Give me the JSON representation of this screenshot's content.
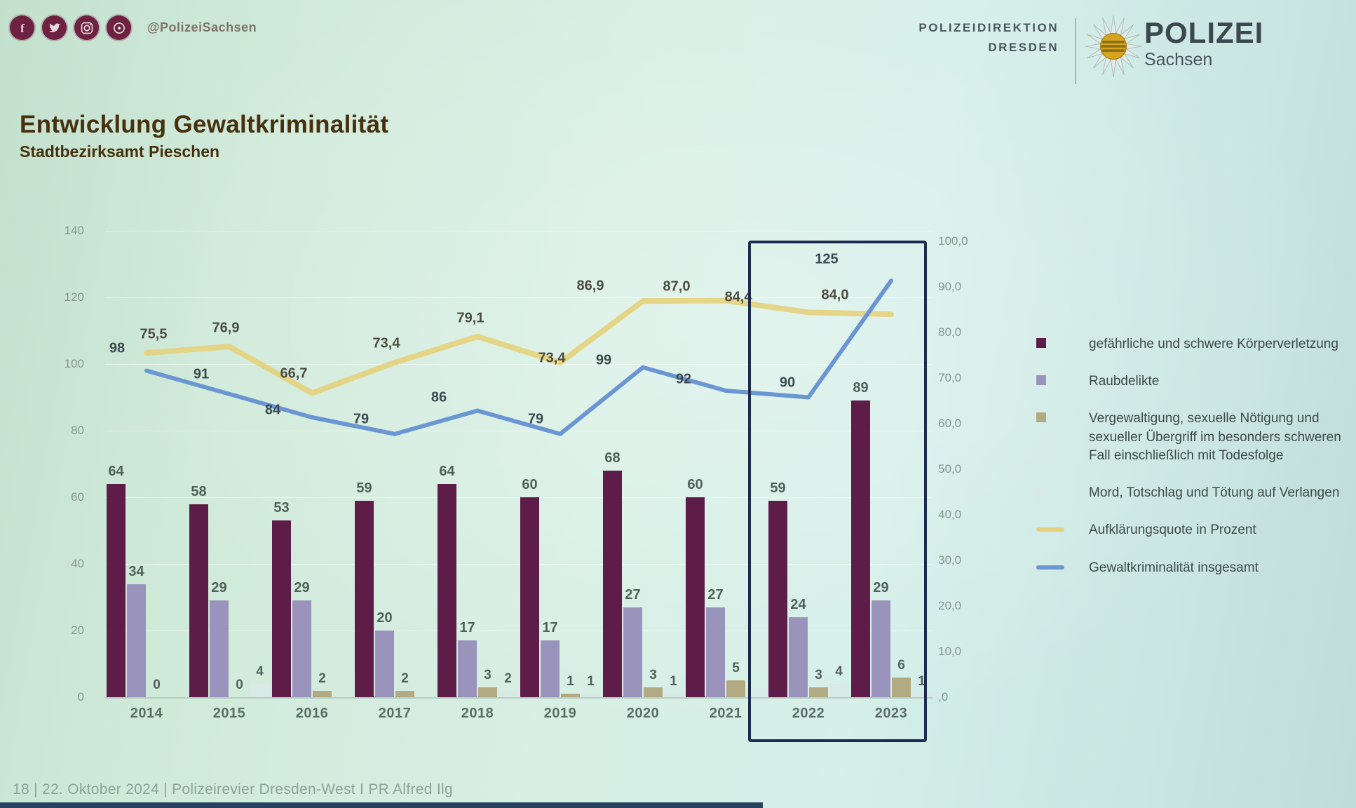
{
  "social": {
    "handle": "@PolizeiSachsen",
    "icons": [
      "facebook-icon",
      "twitter-icon",
      "instagram-icon",
      "messenger-icon"
    ]
  },
  "brand": {
    "org_line1": "POLIZEIDIREKTION",
    "org_line2": "DRESDEN",
    "logo_title": "POLIZEI",
    "logo_subtitle": "Sachsen"
  },
  "title": "Entwicklung Gewaltkriminalität",
  "subtitle": "Stadtbezirksamt Pieschen",
  "footer": {
    "text": "18 | 22. Oktober 2024 | Polizeirevier Dresden-West I PR Alfred Ilg"
  },
  "colors": {
    "bar1": "#5e1c48",
    "bar2": "#9a94bc",
    "bar3": "#b1aa82",
    "bar4": "#d9e9e6",
    "line_yellow": "#e5d17c",
    "line_blue": "#6b96d4",
    "highlight_box": "#1d2b50"
  },
  "chart_data": {
    "type": "combo",
    "title": "Entwicklung Gewaltkriminalität — Stadtbezirksamt Pieschen",
    "categories": [
      "2014",
      "2015",
      "2016",
      "2017",
      "2018",
      "2019",
      "2020",
      "2021",
      "2022",
      "2023"
    ],
    "series": [
      {
        "name": "gefährliche und schwere Körperverletzung",
        "type": "bar",
        "axis": "left",
        "color_key": "bar1",
        "values": [
          64,
          58,
          53,
          59,
          64,
          60,
          68,
          60,
          59,
          89
        ],
        "labels": [
          "64",
          "58",
          "53",
          "59",
          "64",
          "60",
          "68",
          "60",
          "59",
          "89"
        ],
        "show_zero_labels": true
      },
      {
        "name": "Raubdelikte",
        "type": "bar",
        "axis": "left",
        "color_key": "bar2",
        "values": [
          34,
          29,
          29,
          20,
          17,
          17,
          27,
          27,
          24,
          29
        ],
        "labels": [
          "34",
          "29",
          "29",
          "20",
          "17",
          "17",
          "27",
          "27",
          "24",
          "29"
        ],
        "show_zero_labels": true
      },
      {
        "name": "Vergewaltigung, sexuelle Nötigung und sexueller Übergriff im besonders schweren Fall einschließlich mit Todesfolge",
        "type": "bar",
        "axis": "left",
        "color_key": "bar3",
        "values": [
          0,
          0,
          2,
          2,
          3,
          1,
          3,
          5,
          3,
          6
        ],
        "labels": [
          "0",
          "0",
          "2",
          "2",
          "3",
          "1",
          "3",
          "5",
          "3",
          "6"
        ],
        "show_zero_labels": true
      },
      {
        "name": "Mord, Totschlag und Tötung auf Verlangen",
        "type": "bar",
        "axis": "left",
        "color_key": "bar4",
        "values": [
          0,
          4,
          0,
          0,
          2,
          1,
          1,
          0,
          4,
          1
        ],
        "labels": [
          "0",
          "4",
          "0",
          "0",
          "2",
          "1",
          "1",
          "0",
          "4",
          "1"
        ],
        "show_zero_labels": false
      },
      {
        "name": "Aufklärungsquote in Prozent",
        "type": "line",
        "axis": "right",
        "color_key": "line_yellow",
        "values": [
          75.5,
          76.9,
          66.7,
          73.4,
          79.1,
          73.4,
          86.9,
          87.0,
          84.4,
          84.0
        ],
        "labels": [
          "75,5",
          "76,9",
          "66,7",
          "73,4",
          "79,1",
          "73,4",
          "86,9",
          "87,0",
          "84,4",
          "84,0"
        ]
      },
      {
        "name": "Gewaltkriminalität insgesamt",
        "type": "line",
        "axis": "left",
        "color_key": "line_blue",
        "values": [
          98,
          91,
          84,
          79,
          86,
          79,
          99,
          92,
          90,
          125
        ],
        "labels": [
          "98",
          "91",
          "84",
          "79",
          "86",
          "79",
          "99",
          "92",
          "90",
          "125"
        ]
      }
    ],
    "left_axis": {
      "ticks": [
        "0",
        "20",
        "40",
        "60",
        "80",
        "100",
        "120",
        "140"
      ],
      "min": 0,
      "max": 140,
      "step": 20
    },
    "right_axis": {
      "ticks": [
        ",0",
        "10,0",
        "20,0",
        "30,0",
        "40,0",
        "50,0",
        "60,0",
        "70,0",
        "80,0",
        "90,0",
        "100,0"
      ],
      "min": 0,
      "max": 100,
      "step": 10
    },
    "grid": true,
    "legend_position": "right",
    "highlight_years": [
      "2022",
      "2023"
    ]
  }
}
